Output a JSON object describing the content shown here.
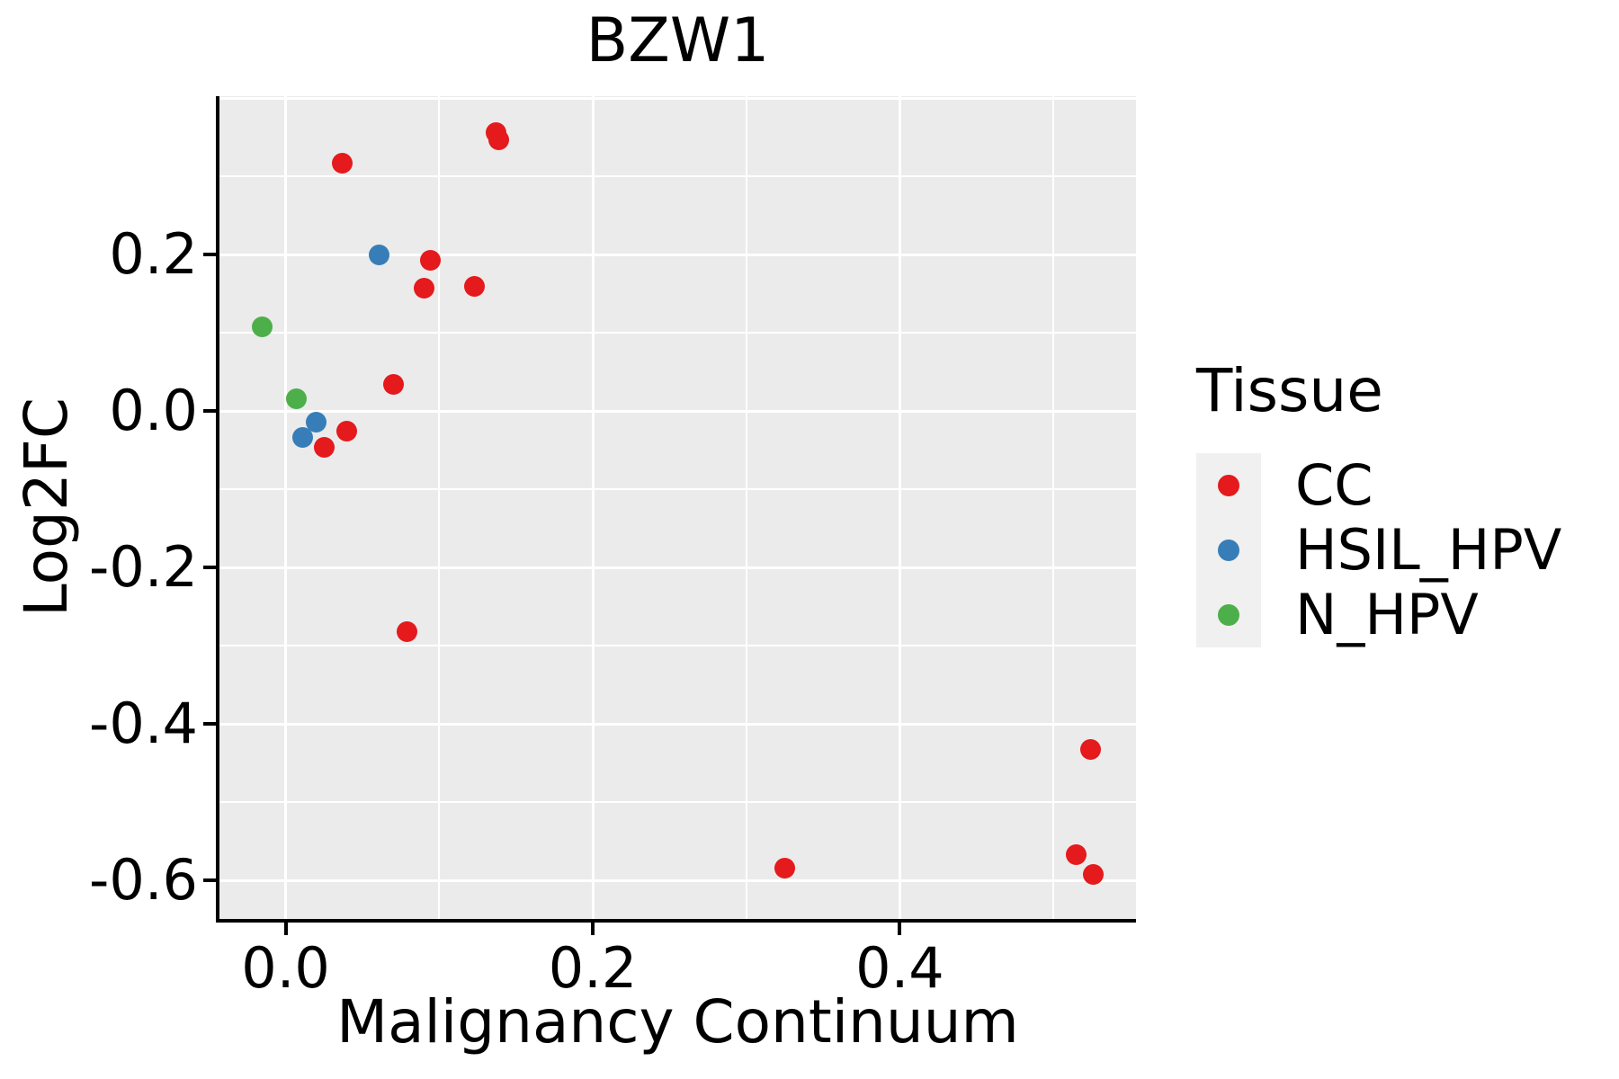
{
  "title": "BZW1",
  "colors": {
    "panel_bg": "#EBEBEB",
    "grid": "#FFFFFF",
    "axis": "#000000",
    "text": "#000000",
    "legend_key_bg": "#F0F0F0",
    "cc": "#E41A1C",
    "hsil_hpv": "#377EB8",
    "n_hpv": "#4DAF4A"
  },
  "x_axis": {
    "label": "Malignancy Continuum",
    "major_ticks": [
      {
        "label": "0.0",
        "value": 0.0
      },
      {
        "label": "0.2",
        "value": 0.2
      },
      {
        "label": "0.4",
        "value": 0.4
      }
    ],
    "major_grid_values": [
      0.0,
      0.2,
      0.4
    ],
    "minor_grid_values": [
      0.1,
      0.3,
      0.5
    ],
    "range": [
      -0.0431,
      0.5538
    ]
  },
  "y_axis": {
    "label": "Log2FC",
    "major_ticks": [
      {
        "label": "0.2",
        "value": 0.2
      },
      {
        "label": "0.0",
        "value": 0.0
      },
      {
        "label": "-0.2",
        "value": -0.2
      },
      {
        "label": "-0.4",
        "value": -0.4
      },
      {
        "label": "-0.6",
        "value": -0.6
      }
    ],
    "major_grid_values": [
      0.4,
      0.2,
      0.0,
      -0.2,
      -0.4,
      -0.6
    ],
    "minor_grid_values": [
      0.3,
      0.1,
      -0.1,
      -0.3,
      -0.5
    ],
    "range": [
      -0.6494,
      0.4023
    ]
  },
  "legend": {
    "title": "Tissue",
    "items": [
      {
        "label": "CC",
        "color": "#E41A1C"
      },
      {
        "label": "HSIL_HPV",
        "color": "#377EB8"
      },
      {
        "label": "N_HPV",
        "color": "#4DAF4A"
      }
    ]
  },
  "chart_data": {
    "type": "scatter",
    "title": "BZW1",
    "xlabel": "Malignancy Continuum",
    "ylabel": "Log2FC",
    "xlim": [
      -0.0431,
      0.5538
    ],
    "ylim": [
      -0.6494,
      0.4023
    ],
    "grid": "major+minor",
    "legend_title": "Tissue",
    "legend_position": "right",
    "series": [
      {
        "name": "CC",
        "color": "#E41A1C",
        "points": [
          [
            0.137,
            0.356
          ],
          [
            0.139,
            0.346
          ],
          [
            0.037,
            0.317
          ],
          [
            0.094,
            0.193
          ],
          [
            0.09,
            0.157
          ],
          [
            0.123,
            0.159
          ],
          [
            0.07,
            0.034
          ],
          [
            0.04,
            -0.026
          ],
          [
            0.025,
            -0.046
          ],
          [
            0.079,
            -0.282
          ],
          [
            0.325,
            -0.585
          ],
          [
            0.524,
            -0.433
          ],
          [
            0.515,
            -0.567
          ],
          [
            0.526,
            -0.593
          ]
        ]
      },
      {
        "name": "HSIL_HPV",
        "color": "#377EB8",
        "points": [
          [
            0.061,
            0.2
          ],
          [
            0.02,
            -0.014
          ],
          [
            0.011,
            -0.034
          ]
        ]
      },
      {
        "name": "N_HPV",
        "color": "#4DAF4A",
        "points": [
          [
            -0.015,
            0.107
          ],
          [
            0.007,
            0.016
          ]
        ]
      }
    ]
  }
}
